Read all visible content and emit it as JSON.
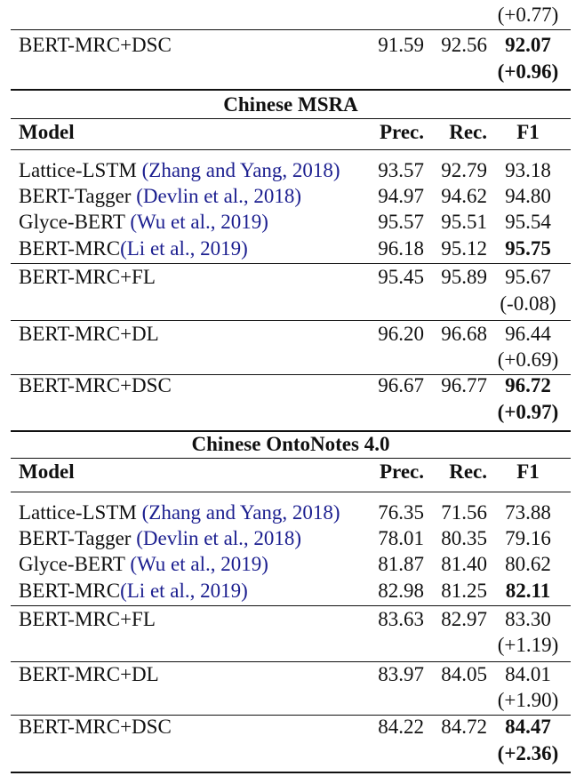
{
  "top_partial": {
    "prev_delta": "(+0.77)",
    "row": {
      "model": "BERT-MRC+DSC",
      "prec": "91.59",
      "rec": "92.56",
      "f1": "92.07",
      "delta": "(+0.96)"
    }
  },
  "sections": [
    {
      "title": "Chinese MSRA",
      "header": {
        "model": "Model",
        "prec": "Prec.",
        "rec": "Rec.",
        "f1": "F1"
      },
      "baselines": [
        {
          "model": "Lattice-LSTM ",
          "cite": "(Zhang and Yang, 2018)",
          "prec": "93.57",
          "rec": "92.79",
          "f1": "93.18"
        },
        {
          "model": "BERT-Tagger ",
          "cite": "(Devlin et al., 2018)",
          "prec": "94.97",
          "rec": "94.62",
          "f1": "94.80"
        },
        {
          "model": "Glyce-BERT ",
          "cite": "(Wu et al., 2019)",
          "prec": "95.57",
          "rec": "95.51",
          "f1": "95.54"
        },
        {
          "model": "BERT-MRC",
          "cite": "(Li et al., 2019)",
          "prec": "96.18",
          "rec": "95.12",
          "f1": "95.75"
        }
      ],
      "variants": [
        {
          "model": "BERT-MRC+FL",
          "prec": "95.45",
          "rec": "95.89",
          "f1": "95.67",
          "delta": "(-0.08)"
        },
        {
          "model": "BERT-MRC+DL",
          "prec": "96.20",
          "rec": "96.68",
          "f1": "96.44",
          "delta": "(+0.69)"
        },
        {
          "model": "BERT-MRC+DSC",
          "prec": "96.67",
          "rec": "96.77",
          "f1": "96.72",
          "delta": "(+0.97)"
        }
      ]
    },
    {
      "title": "Chinese OntoNotes 4.0",
      "header": {
        "model": "Model",
        "prec": "Prec.",
        "rec": "Rec.",
        "f1": "F1"
      },
      "baselines": [
        {
          "model": "Lattice-LSTM ",
          "cite": "(Zhang and Yang, 2018)",
          "prec": "76.35",
          "rec": "71.56",
          "f1": "73.88"
        },
        {
          "model": "BERT-Tagger ",
          "cite": "(Devlin et al., 2018)",
          "prec": "78.01",
          "rec": "80.35",
          "f1": "79.16"
        },
        {
          "model": "Glyce-BERT ",
          "cite": "(Wu et al., 2019)",
          "prec": "81.87",
          "rec": "81.40",
          "f1": "80.62"
        },
        {
          "model": "BERT-MRC",
          "cite": "(Li et al., 2019)",
          "prec": "82.98",
          "rec": "81.25",
          "f1": "82.11"
        }
      ],
      "variants": [
        {
          "model": "BERT-MRC+FL",
          "prec": "83.63",
          "rec": "82.97",
          "f1": "83.30",
          "delta": "(+1.19)"
        },
        {
          "model": "BERT-MRC+DL",
          "prec": "83.97",
          "rec": "84.05",
          "f1": "84.01",
          "delta": "(+1.90)"
        },
        {
          "model": "BERT-MRC+DSC",
          "prec": "84.22",
          "rec": "84.72",
          "f1": "84.47",
          "delta": "(+2.36)"
        }
      ]
    }
  ],
  "colors": {
    "text": "#111111",
    "citation": "#1b1e8f"
  }
}
